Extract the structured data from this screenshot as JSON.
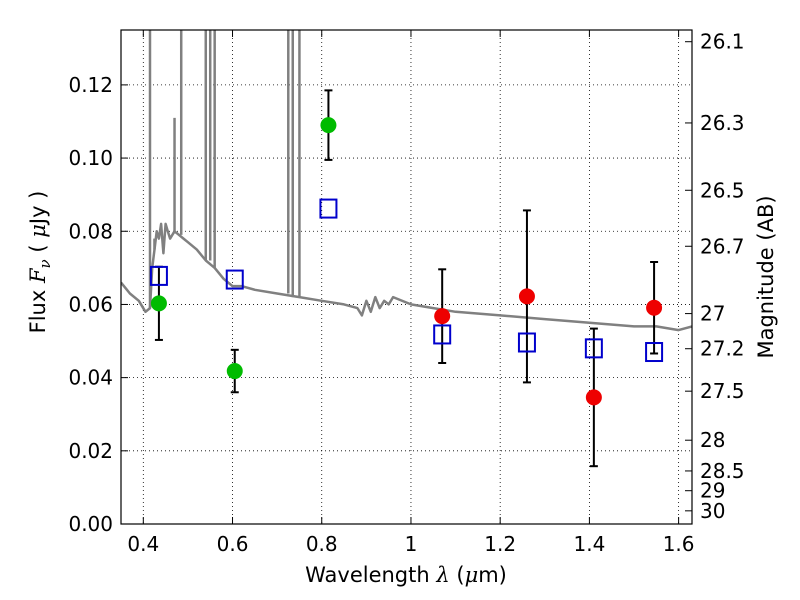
{
  "chart_data": {
    "type": "scatter",
    "title": "",
    "xlabel": "Wavelength",
    "xlabel_symbol": "λ",
    "xlabel_unit_open": " (",
    "xlabel_unit_symbol": "μ",
    "xlabel_unit_close": "m)",
    "ylabel": "Flux",
    "ylabel_symbol": "F",
    "ylabel_subscript": "ν",
    "ylabel_unit_open": " ( ",
    "ylabel_unit_symbol": "μ",
    "ylabel_unit_close": "Jy )",
    "y2label": "Magnitude (AB)",
    "xlim": [
      0.35,
      1.63
    ],
    "ylim": [
      0.0,
      0.135
    ],
    "grid": true,
    "grid_style": "dotted",
    "xticks": [
      0.4,
      0.6,
      0.8,
      1.0,
      1.2,
      1.4,
      1.6
    ],
    "xtick_labels": [
      "0.4",
      "0.6",
      "0.8",
      "1",
      "1.2",
      "1.4",
      "1.6"
    ],
    "yticks": [
      0.0,
      0.02,
      0.04,
      0.06,
      0.08,
      0.1,
      0.12
    ],
    "ytick_labels": [
      "0.00",
      "0.02",
      "0.04",
      "0.06",
      "0.08",
      "0.10",
      "0.12"
    ],
    "y2ticks": [
      {
        "label": "26.1",
        "flux": 0.1318
      },
      {
        "label": "26.3",
        "flux": 0.1096
      },
      {
        "label": "26.5",
        "flux": 0.0912
      },
      {
        "label": "26.7",
        "flux": 0.0759
      },
      {
        "label": "27",
        "flux": 0.0575
      },
      {
        "label": "27.2",
        "flux": 0.0479
      },
      {
        "label": "27.5",
        "flux": 0.0363
      },
      {
        "label": "28",
        "flux": 0.0229
      },
      {
        "label": "28.5",
        "flux": 0.0145
      },
      {
        "label": "29",
        "flux": 0.0091
      },
      {
        "label": "30",
        "flux": 0.0036
      }
    ],
    "series": [
      {
        "kind": "line",
        "color": "#808080",
        "x": [
          0.35,
          0.37,
          0.39,
          0.405,
          0.415,
          0.42,
          0.425,
          0.43,
          0.435,
          0.44,
          0.445,
          0.45,
          0.455,
          0.46,
          0.47,
          0.48,
          0.49,
          0.5,
          0.52,
          0.54,
          0.56,
          0.58,
          0.6,
          0.62,
          0.65,
          0.7,
          0.75,
          0.8,
          0.85,
          0.88,
          0.89,
          0.9,
          0.91,
          0.92,
          0.93,
          0.94,
          0.95,
          0.96,
          1.0,
          1.05,
          1.1,
          1.2,
          1.3,
          1.4,
          1.5,
          1.55,
          1.6,
          1.63
        ],
        "y": [
          0.066,
          0.063,
          0.061,
          0.058,
          0.059,
          0.07,
          0.075,
          0.08,
          0.078,
          0.082,
          0.074,
          0.082,
          0.08,
          0.078,
          0.08,
          0.079,
          0.078,
          0.077,
          0.075,
          0.072,
          0.07,
          0.067,
          0.065,
          0.065,
          0.064,
          0.063,
          0.062,
          0.061,
          0.06,
          0.059,
          0.057,
          0.061,
          0.058,
          0.062,
          0.059,
          0.061,
          0.06,
          0.062,
          0.06,
          0.059,
          0.058,
          0.057,
          0.056,
          0.055,
          0.054,
          0.054,
          0.053,
          0.054
        ]
      },
      {
        "kind": "emission_lines",
        "color": "#808080",
        "x": [
          0.415,
          0.425,
          0.47,
          0.485,
          0.54,
          0.55,
          0.56,
          0.725,
          0.735,
          0.75
        ],
        "y_top": [
          0.135,
          0.078,
          0.111,
          0.135,
          0.135,
          0.135,
          0.135,
          0.135,
          0.135,
          0.135
        ]
      },
      {
        "kind": "points",
        "marker": "circle",
        "color": "#00bb00",
        "x": [
          0.435,
          0.605,
          0.815
        ],
        "y": [
          0.0603,
          0.0418,
          0.109
        ],
        "err": [
          0.01,
          0.0058,
          0.0095
        ]
      },
      {
        "kind": "points",
        "marker": "circle",
        "color": "#ee0000",
        "x": [
          1.07,
          1.26,
          1.41,
          1.545
        ],
        "y": [
          0.0568,
          0.0622,
          0.0346,
          0.0591
        ],
        "err": [
          0.0128,
          0.0235,
          0.0188,
          0.0125
        ]
      },
      {
        "kind": "points",
        "marker": "open-square",
        "color": "#0000cc",
        "x": [
          0.435,
          0.605,
          0.815,
          1.07,
          1.26,
          1.41,
          1.545
        ],
        "y": [
          0.0678,
          0.0668,
          0.0862,
          0.0518,
          0.0496,
          0.048,
          0.047
        ]
      }
    ]
  }
}
